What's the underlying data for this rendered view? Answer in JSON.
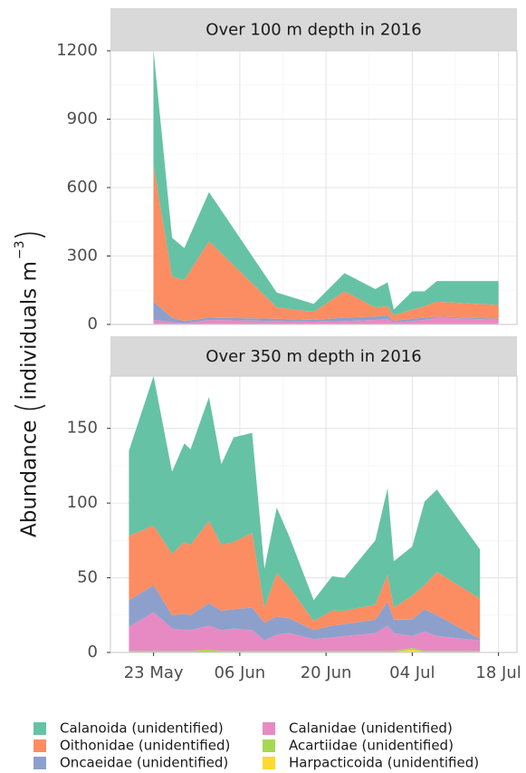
{
  "chart_data": [
    {
      "type": "area",
      "title": "Over 100 m depth in 2016",
      "x": [
        "23 May",
        "26 May",
        "28 May",
        "01 Jun",
        "12 Jun",
        "18 Jun",
        "23 Jun",
        "28 Jun",
        "30 Jun",
        "01 Jul",
        "04 Jul",
        "06 Jul",
        "08 Jul",
        "18 Jul"
      ],
      "series": [
        {
          "name": "Calanoida (unidentified)",
          "color": "#66c2a5",
          "values": [
            500,
            170,
            140,
            215,
            65,
            35,
            80,
            80,
            105,
            25,
            80,
            65,
            90,
            105
          ]
        },
        {
          "name": "Oithonidae (unidentified)",
          "color": "#fc8d62",
          "values": [
            600,
            180,
            180,
            335,
            50,
            35,
            115,
            40,
            40,
            25,
            40,
            50,
            65,
            60
          ]
        },
        {
          "name": "Oncaeidae (unidentified)",
          "color": "#8da0cb",
          "values": [
            80,
            20,
            10,
            10,
            10,
            8,
            15,
            15,
            15,
            7,
            10,
            10,
            5,
            5
          ]
        },
        {
          "name": "Calanidae (unidentified)",
          "color": "#e78ac3",
          "values": [
            18,
            9,
            4,
            18,
            14,
            11,
            14,
            19,
            24,
            7,
            14,
            19,
            29,
            19
          ]
        },
        {
          "name": "Acartiidae (unidentified)",
          "color": "#a6d854",
          "values": [
            2,
            1,
            1,
            2,
            1,
            1,
            1,
            1,
            1,
            1,
            1,
            1,
            1,
            1
          ]
        },
        {
          "name": "Harpacticoida (unidentified)",
          "color": "#ffd92f",
          "values": [
            0,
            0,
            0,
            0,
            0,
            0,
            0,
            0,
            0,
            0,
            0,
            0,
            0,
            0
          ]
        }
      ],
      "xlim": [
        "16 May",
        "21 Jul"
      ],
      "xticks": [
        "23 May",
        "06 Jun",
        "20 Jun",
        "04 Jul",
        "18 Jul"
      ],
      "ylim": [
        0,
        1200
      ],
      "yticks": [
        0,
        300,
        600,
        900,
        1200
      ],
      "grid": true,
      "stacked": true
    },
    {
      "type": "area",
      "title": "Over 350 m depth in 2016",
      "x": [
        "19 May",
        "23 May",
        "26 May",
        "28 May",
        "29 May",
        "01 Jun",
        "03 Jun",
        "05 Jun",
        "08 Jun",
        "10 Jun",
        "12 Jun",
        "14 Jun",
        "18 Jun",
        "21 Jun",
        "23 Jun",
        "28 Jun",
        "30 Jun",
        "01 Jul",
        "04 Jul",
        "06 Jul",
        "08 Jul",
        "15 Jul"
      ],
      "series": [
        {
          "name": "Calanoida (unidentified)",
          "color": "#66c2a5",
          "values": [
            57,
            100,
            55,
            66,
            64,
            83,
            54,
            70,
            67,
            26,
            44,
            34,
            14,
            23,
            22,
            43,
            58,
            31,
            33,
            56,
            55,
            33
          ]
        },
        {
          "name": "Oithonidae (unidentified)",
          "color": "#fc8d62",
          "values": [
            43,
            40,
            41,
            48,
            47,
            55,
            44,
            45,
            50,
            10,
            29,
            21,
            6,
            10,
            9,
            10,
            18,
            8,
            16,
            16,
            29,
            27
          ]
        },
        {
          "name": "Oncaeidae (unidentified)",
          "color": "#8da0cb",
          "values": [
            18,
            18,
            9,
            11,
            10,
            15,
            13,
            13,
            15,
            12,
            12,
            10,
            6,
            8,
            8,
            9,
            16,
            9,
            11,
            15,
            14,
            1
          ]
        },
        {
          "name": "Calanidae (unidentified)",
          "color": "#e78ac3",
          "values": [
            16,
            26,
            15,
            14,
            14,
            16,
            14,
            15,
            14,
            7,
            11,
            12,
            8,
            9,
            10,
            12,
            17,
            12,
            8,
            13,
            10,
            7
          ]
        },
        {
          "name": "Acartiidae (unidentified)",
          "color": "#a6d854",
          "values": [
            1,
            1,
            1,
            1,
            1,
            2,
            1,
            1,
            1,
            1,
            1,
            1,
            1,
            1,
            1,
            1,
            1,
            1,
            1,
            1,
            1,
            1
          ]
        },
        {
          "name": "Harpacticoida (unidentified)",
          "color": "#ffd92f",
          "values": [
            0,
            0,
            0,
            0,
            0,
            0,
            0,
            0,
            0,
            0,
            0,
            0,
            0,
            0,
            0,
            0,
            0,
            0,
            2,
            0,
            0,
            0
          ]
        }
      ],
      "xlim": [
        "16 May",
        "21 Jul"
      ],
      "xticks": [
        "23 May",
        "06 Jun",
        "20 Jun",
        "04 Jul",
        "18 Jul"
      ],
      "ylim": [
        0,
        185
      ],
      "yticks": [
        0,
        50,
        100,
        150
      ],
      "grid": true,
      "stacked": true
    }
  ],
  "ylabel": {
    "text": "Abundance",
    "unit": "individuals m",
    "exponent": "−3"
  }
}
